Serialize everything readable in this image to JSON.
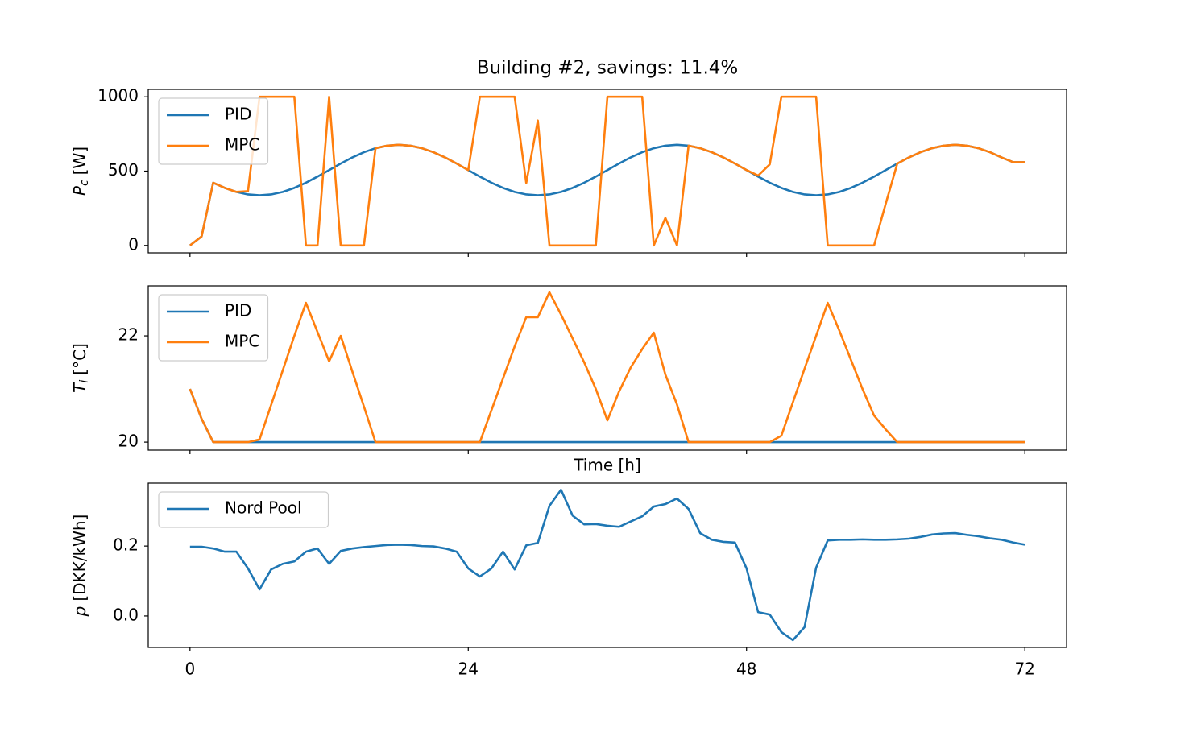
{
  "chart_data": [
    {
      "type": "line",
      "title": "Building #2, savings: 11.4%",
      "ylabel": {
        "symbol": "P",
        "subscript": "c",
        "unit": "[W]"
      },
      "x": [
        0,
        1,
        2,
        3,
        4,
        5,
        6,
        7,
        8,
        9,
        10,
        11,
        12,
        13,
        14,
        15,
        16,
        17,
        18,
        19,
        20,
        21,
        22,
        23,
        24,
        25,
        26,
        27,
        28,
        29,
        30,
        31,
        32,
        33,
        34,
        35,
        36,
        37,
        38,
        39,
        40,
        41,
        42,
        43,
        44,
        45,
        46,
        47,
        48,
        49,
        50,
        51,
        52,
        53,
        54,
        55,
        56,
        57,
        58,
        59,
        60,
        61,
        62,
        63,
        64,
        65,
        66,
        67,
        68,
        69,
        70,
        71,
        72
      ],
      "series": [
        {
          "name": "PID",
          "color": "#1f77b4",
          "values": [
            0,
            60,
            422,
            387,
            360,
            343,
            337,
            343,
            360,
            387,
            422,
            463,
            507,
            551,
            592,
            627,
            654,
            671,
            677,
            671,
            654,
            627,
            592,
            551,
            507,
            463,
            422,
            387,
            360,
            343,
            337,
            343,
            360,
            387,
            422,
            463,
            507,
            551,
            592,
            627,
            654,
            671,
            677,
            671,
            654,
            627,
            592,
            551,
            507,
            463,
            422,
            387,
            360,
            343,
            337,
            343,
            360,
            387,
            422,
            463,
            507,
            551,
            592,
            627,
            654,
            671,
            677,
            671,
            654,
            627,
            592,
            560,
            560
          ]
        },
        {
          "name": "MPC",
          "color": "#ff7f0e",
          "values": [
            0,
            60,
            422,
            387,
            360,
            365,
            1000,
            1000,
            1000,
            1000,
            0,
            0,
            1000,
            0,
            0,
            0,
            654,
            671,
            677,
            671,
            654,
            627,
            592,
            551,
            507,
            1000,
            1000,
            1000,
            1000,
            420,
            840,
            0,
            0,
            0,
            0,
            0,
            1000,
            1000,
            1000,
            1000,
            0,
            185,
            0,
            671,
            654,
            627,
            592,
            551,
            507,
            470,
            545,
            1000,
            1000,
            1000,
            1000,
            0,
            0,
            0,
            0,
            0,
            280,
            551,
            592,
            627,
            654,
            671,
            677,
            671,
            654,
            627,
            592,
            560,
            560
          ]
        }
      ],
      "xlim": [
        -3.6,
        75.6
      ],
      "ylim": [
        -50,
        1050
      ],
      "yticks": [
        0,
        500,
        1000
      ],
      "legend": "upper left"
    },
    {
      "type": "line",
      "xlabel": "Time [h]",
      "ylabel": {
        "symbol": "T",
        "subscript": "i",
        "unit": "[°C]"
      },
      "x": [
        0,
        1,
        2,
        3,
        4,
        5,
        6,
        7,
        8,
        9,
        10,
        11,
        12,
        13,
        14,
        15,
        16,
        17,
        18,
        19,
        20,
        21,
        22,
        23,
        24,
        25,
        26,
        27,
        28,
        29,
        30,
        31,
        32,
        33,
        34,
        35,
        36,
        37,
        38,
        39,
        40,
        41,
        42,
        43,
        44,
        45,
        46,
        47,
        48,
        49,
        50,
        51,
        52,
        53,
        54,
        55,
        56,
        57,
        58,
        59,
        60,
        61,
        62,
        63,
        64,
        65,
        66,
        67,
        68,
        69,
        70,
        71,
        72
      ],
      "series": [
        {
          "name": "PID",
          "color": "#1f77b4",
          "values": [
            21.0,
            20.44,
            20,
            20,
            20,
            20,
            20,
            20,
            20,
            20,
            20,
            20,
            20,
            20,
            20,
            20,
            20,
            20,
            20,
            20,
            20,
            20,
            20,
            20,
            20,
            20,
            20,
            20,
            20,
            20,
            20,
            20,
            20,
            20,
            20,
            20,
            20,
            20,
            20,
            20,
            20,
            20,
            20,
            20,
            20,
            20,
            20,
            20,
            20,
            20,
            20,
            20,
            20,
            20,
            20,
            20,
            20,
            20,
            20,
            20,
            20,
            20,
            20,
            20,
            20,
            20,
            20,
            20,
            20,
            20,
            20,
            20,
            20
          ]
        },
        {
          "name": "MPC",
          "color": "#ff7f0e",
          "values": [
            21.0,
            20.44,
            20,
            20,
            20,
            20,
            20.05,
            20.7,
            21.35,
            22.0,
            22.62,
            22.07,
            21.52,
            22.0,
            21.33,
            20.67,
            20,
            20,
            20,
            20,
            20,
            20,
            20,
            20,
            20,
            20,
            20.6,
            21.2,
            21.8,
            22.35,
            22.35,
            22.82,
            22.4,
            21.95,
            21.5,
            21.0,
            20.41,
            20.95,
            21.4,
            21.75,
            22.06,
            21.27,
            20.71,
            20,
            20,
            20,
            20,
            20,
            20,
            20,
            20,
            20.12,
            20.75,
            21.38,
            22.0,
            22.62,
            22.1,
            21.55,
            21.0,
            20.5,
            20.24,
            20,
            20,
            20,
            20,
            20,
            20,
            20,
            20,
            20,
            20,
            20,
            20
          ]
        }
      ],
      "xlim": [
        -3.6,
        75.6
      ],
      "ylim": [
        19.85,
        22.94
      ],
      "yticks": [
        20,
        22
      ],
      "legend": "upper left"
    },
    {
      "type": "line",
      "ylabel": {
        "symbol": "p",
        "unit": "[DKK/kWh]"
      },
      "x": [
        0,
        1,
        2,
        3,
        4,
        5,
        6,
        7,
        8,
        9,
        10,
        11,
        12,
        13,
        14,
        15,
        16,
        17,
        18,
        19,
        20,
        21,
        22,
        23,
        24,
        25,
        26,
        27,
        28,
        29,
        30,
        31,
        32,
        33,
        34,
        35,
        36,
        37,
        38,
        39,
        40,
        41,
        42,
        43,
        44,
        45,
        46,
        47,
        48,
        49,
        50,
        51,
        52,
        53,
        54,
        55,
        56,
        57,
        58,
        59,
        60,
        61,
        62,
        63,
        64,
        65,
        66,
        67,
        68,
        69,
        70,
        71,
        72
      ],
      "series": [
        {
          "name": "Nord Pool",
          "color": "#1f77b4",
          "values": [
            0.198,
            0.198,
            0.193,
            0.184,
            0.184,
            0.136,
            0.076,
            0.133,
            0.149,
            0.156,
            0.184,
            0.193,
            0.149,
            0.186,
            0.193,
            0.197,
            0.2,
            0.203,
            0.204,
            0.203,
            0.2,
            0.199,
            0.193,
            0.184,
            0.136,
            0.113,
            0.136,
            0.184,
            0.133,
            0.202,
            0.209,
            0.315,
            0.361,
            0.287,
            0.262,
            0.263,
            0.258,
            0.255,
            0.27,
            0.285,
            0.313,
            0.32,
            0.336,
            0.306,
            0.237,
            0.218,
            0.212,
            0.21,
            0.136,
            0.011,
            0.004,
            -0.046,
            -0.069,
            -0.032,
            0.138,
            0.216,
            0.218,
            0.218,
            0.219,
            0.218,
            0.218,
            0.219,
            0.221,
            0.226,
            0.233,
            0.236,
            0.237,
            0.232,
            0.228,
            0.222,
            0.218,
            0.21,
            0.204
          ]
        }
      ],
      "xlim": [
        -3.6,
        75.6
      ],
      "ylim": [
        -0.09,
        0.38
      ],
      "yticks": [
        {
          "value": 0,
          "label": "0.0"
        },
        0.2
      ],
      "xticks": [
        0,
        24,
        48,
        72
      ],
      "legend": "upper left"
    }
  ]
}
